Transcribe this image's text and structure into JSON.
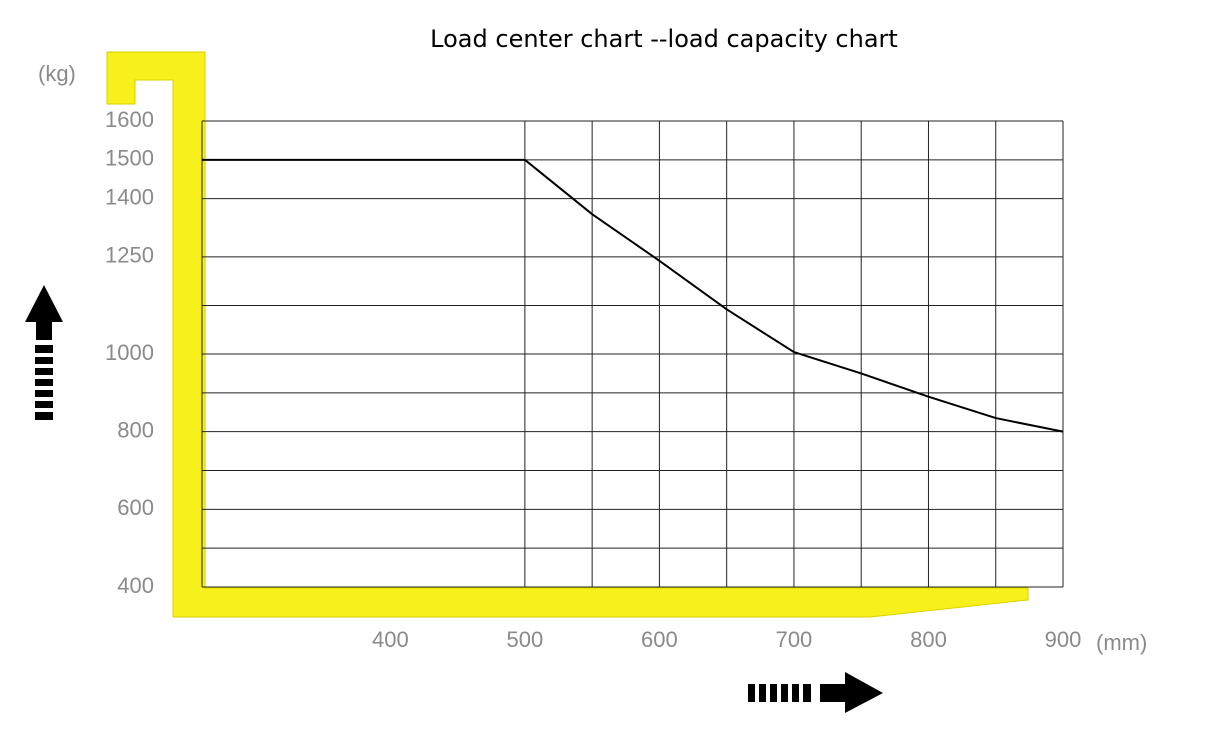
{
  "chart_data": {
    "type": "line",
    "title": "Load center chart --load capacity chart",
    "y_unit": "(kg)",
    "x_unit": "(mm)",
    "x": [
      260,
      500,
      550,
      600,
      650,
      700,
      750,
      800,
      850,
      900
    ],
    "series": [
      {
        "name": "load capacity",
        "color": "#000000",
        "values": [
          1500,
          1500,
          1360,
          1240,
          1115,
          1005,
          950,
          890,
          835,
          800
        ]
      }
    ],
    "xlim": [
      260,
      900
    ],
    "xticks": [
      400,
      500,
      600,
      700,
      800,
      900
    ],
    "xgrid": [
      500,
      550,
      600,
      650,
      700,
      750,
      800,
      850,
      900
    ],
    "ylim": [
      400,
      1600
    ],
    "yticks": [
      400,
      600,
      800,
      1000,
      1250,
      1400,
      1500,
      1600
    ],
    "ygrid": [
      400,
      500,
      600,
      700,
      800,
      900,
      1000,
      1125,
      1250,
      1400,
      1500,
      1600
    ],
    "grid": true
  }
}
